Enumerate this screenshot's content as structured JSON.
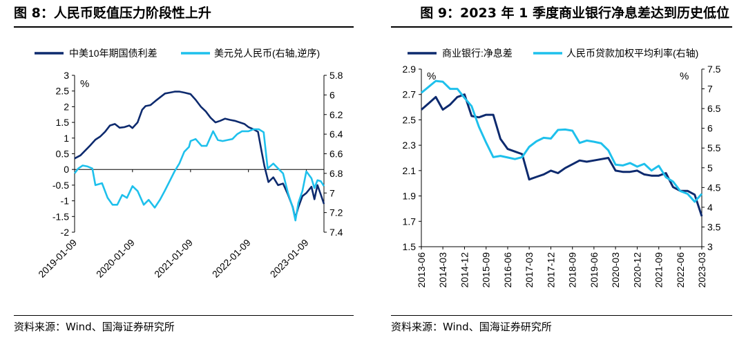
{
  "panels": [
    {
      "title": "图 8：人民币贬值压力阶段性上升",
      "source": "资料来源：Wind、国海证券研究所"
    },
    {
      "title": "图 9：2023 年 1 季度商业银行净息差达到历史低位",
      "source": "资料来源：Wind、国海证券研究所"
    }
  ],
  "chart_data": [
    {
      "type": "line",
      "title": "图 8：人民币贬值压力阶段性上升",
      "x_ticks": [
        "2019-01-09",
        "2020-01-09",
        "2021-01-09",
        "2022-01-09",
        "2023-01-09"
      ],
      "x_range": [
        "2019-01-09",
        "2023-04-30"
      ],
      "y_left": {
        "unit": "%",
        "ticks": [
          "3",
          "2.5",
          "2",
          "1.5",
          "1",
          "0.5",
          "0",
          "-0.5",
          "-1",
          "-1.5",
          "-2"
        ],
        "range": [
          -2,
          3
        ]
      },
      "y_right": {
        "ticks": [
          "5.8",
          "6",
          "6.2",
          "6.4",
          "6.6",
          "6.8",
          "7",
          "7.2",
          "7.4"
        ],
        "range": [
          5.8,
          7.4
        ],
        "reversed": true
      },
      "legend_position": "top",
      "grid": false,
      "series": [
        {
          "name": "中美10年期国债利差",
          "color": "#0d2a6e",
          "axis": "left",
          "points": [
            [
              "2019-01-09",
              0.35
            ],
            [
              "2019-02-15",
              0.45
            ],
            [
              "2019-03-20",
              0.62
            ],
            [
              "2019-04-20",
              0.78
            ],
            [
              "2019-05-20",
              0.95
            ],
            [
              "2019-06-20",
              1.05
            ],
            [
              "2019-07-20",
              1.2
            ],
            [
              "2019-08-20",
              1.4
            ],
            [
              "2019-09-20",
              1.45
            ],
            [
              "2019-10-20",
              1.33
            ],
            [
              "2019-11-20",
              1.35
            ],
            [
              "2019-12-20",
              1.4
            ],
            [
              "2020-01-09",
              1.32
            ],
            [
              "2020-02-10",
              1.5
            ],
            [
              "2020-03-10",
              1.9
            ],
            [
              "2020-03-31",
              2.02
            ],
            [
              "2020-05-01",
              2.05
            ],
            [
              "2020-06-01",
              2.18
            ],
            [
              "2020-07-01",
              2.3
            ],
            [
              "2020-08-01",
              2.42
            ],
            [
              "2020-09-01",
              2.45
            ],
            [
              "2020-10-01",
              2.48
            ],
            [
              "2020-11-01",
              2.48
            ],
            [
              "2020-12-01",
              2.45
            ],
            [
              "2021-01-09",
              2.4
            ],
            [
              "2021-02-10",
              2.22
            ],
            [
              "2021-03-15",
              2.0
            ],
            [
              "2021-04-15",
              1.85
            ],
            [
              "2021-05-15",
              1.65
            ],
            [
              "2021-06-15",
              1.5
            ],
            [
              "2021-07-15",
              1.55
            ],
            [
              "2021-08-15",
              1.62
            ],
            [
              "2021-09-15",
              1.58
            ],
            [
              "2021-10-15",
              1.55
            ],
            [
              "2021-11-15",
              1.5
            ],
            [
              "2021-12-15",
              1.45
            ],
            [
              "2022-01-09",
              1.35
            ],
            [
              "2022-02-10",
              1.28
            ],
            [
              "2022-03-10",
              1.2
            ],
            [
              "2022-04-01",
              0.6
            ],
            [
              "2022-04-20",
              0.1
            ],
            [
              "2022-05-15",
              -0.4
            ],
            [
              "2022-06-15",
              -0.25
            ],
            [
              "2022-07-15",
              -0.5
            ],
            [
              "2022-08-15",
              -0.45
            ],
            [
              "2022-09-15",
              -0.8
            ],
            [
              "2022-10-15",
              -1.2
            ],
            [
              "2022-10-31",
              -1.55
            ],
            [
              "2022-11-20",
              -1.2
            ],
            [
              "2022-12-15",
              -0.85
            ],
            [
              "2023-01-09",
              -0.75
            ],
            [
              "2023-02-10",
              -0.55
            ],
            [
              "2023-03-01",
              -0.95
            ],
            [
              "2023-03-20",
              -0.5
            ],
            [
              "2023-04-10",
              -0.8
            ],
            [
              "2023-04-30",
              -1.1
            ]
          ]
        },
        {
          "name": "美元兑人民币(右轴,逆序)",
          "color": "#1ec0ec",
          "axis": "right",
          "points": [
            [
              "2019-01-09",
              6.8
            ],
            [
              "2019-02-01",
              6.75
            ],
            [
              "2019-03-01",
              6.72
            ],
            [
              "2019-04-01",
              6.73
            ],
            [
              "2019-05-01",
              6.75
            ],
            [
              "2019-05-20",
              6.92
            ],
            [
              "2019-07-01",
              6.9
            ],
            [
              "2019-08-05",
              7.05
            ],
            [
              "2019-09-05",
              7.12
            ],
            [
              "2019-10-05",
              7.12
            ],
            [
              "2019-11-05",
              7.02
            ],
            [
              "2019-12-05",
              7.05
            ],
            [
              "2020-01-09",
              6.93
            ],
            [
              "2020-02-10",
              6.98
            ],
            [
              "2020-03-20",
              7.12
            ],
            [
              "2020-04-20",
              7.07
            ],
            [
              "2020-05-28",
              7.15
            ],
            [
              "2020-06-30",
              7.07
            ],
            [
              "2020-07-30",
              6.98
            ],
            [
              "2020-08-30",
              6.88
            ],
            [
              "2020-09-30",
              6.78
            ],
            [
              "2020-10-30",
              6.7
            ],
            [
              "2020-11-30",
              6.58
            ],
            [
              "2020-12-30",
              6.53
            ],
            [
              "2021-01-09",
              6.47
            ],
            [
              "2021-02-10",
              6.45
            ],
            [
              "2021-03-20",
              6.52
            ],
            [
              "2021-04-20",
              6.52
            ],
            [
              "2021-05-31",
              6.37
            ],
            [
              "2021-06-30",
              6.46
            ],
            [
              "2021-07-30",
              6.47
            ],
            [
              "2021-08-30",
              6.46
            ],
            [
              "2021-09-30",
              6.45
            ],
            [
              "2021-10-30",
              6.4
            ],
            [
              "2021-11-30",
              6.37
            ],
            [
              "2021-12-30",
              6.37
            ],
            [
              "2022-01-09",
              6.37
            ],
            [
              "2022-02-10",
              6.35
            ],
            [
              "2022-03-15",
              6.35
            ],
            [
              "2022-04-15",
              6.38
            ],
            [
              "2022-05-10",
              6.75
            ],
            [
              "2022-06-15",
              6.7
            ],
            [
              "2022-07-15",
              6.75
            ],
            [
              "2022-08-15",
              6.8
            ],
            [
              "2022-09-15",
              7.0
            ],
            [
              "2022-10-15",
              7.15
            ],
            [
              "2022-11-01",
              7.28
            ],
            [
              "2022-11-20",
              7.1
            ],
            [
              "2022-12-15",
              6.98
            ],
            [
              "2023-01-09",
              6.78
            ],
            [
              "2023-02-10",
              6.85
            ],
            [
              "2023-03-01",
              6.95
            ],
            [
              "2023-03-20",
              6.87
            ],
            [
              "2023-04-10",
              6.88
            ],
            [
              "2023-04-30",
              6.93
            ]
          ]
        }
      ]
    },
    {
      "type": "line",
      "title": "图 9：2023 年 1 季度商业银行净息差达到历史低位",
      "categories": [
        "2013-06",
        "2014-03",
        "2014-12",
        "2015-09",
        "2016-06",
        "2017-03",
        "2017-12",
        "2018-09",
        "2019-06",
        "2020-03",
        "2020-12",
        "2021-09",
        "2022-06",
        "2023-03"
      ],
      "x_range": [
        "2013-06",
        "2023-03"
      ],
      "y_left": {
        "unit": "%",
        "ticks": [
          "2.9",
          "2.7",
          "2.5",
          "2.3",
          "2.1",
          "1.9",
          "1.7",
          "1.5"
        ],
        "range": [
          1.5,
          2.9
        ]
      },
      "y_right": {
        "unit": "%",
        "ticks": [
          "7.5",
          "7",
          "6.5",
          "6",
          "5.5",
          "5",
          "4.5",
          "4",
          "3.5",
          "3"
        ],
        "range": [
          3,
          7.5
        ]
      },
      "legend_position": "top",
      "grid": false,
      "series": [
        {
          "name": "商业银行:净息差",
          "color": "#0d2a6e",
          "axis": "left",
          "points": [
            [
              "2013-06",
              2.58
            ],
            [
              "2013-09",
              2.63
            ],
            [
              "2013-12",
              2.68
            ],
            [
              "2014-03",
              2.58
            ],
            [
              "2014-06",
              2.62
            ],
            [
              "2014-09",
              2.68
            ],
            [
              "2014-12",
              2.7
            ],
            [
              "2015-03",
              2.53
            ],
            [
              "2015-06",
              2.52
            ],
            [
              "2015-09",
              2.54
            ],
            [
              "2015-12",
              2.54
            ],
            [
              "2016-03",
              2.35
            ],
            [
              "2016-06",
              2.27
            ],
            [
              "2016-09",
              2.25
            ],
            [
              "2016-12",
              2.23
            ],
            [
              "2017-03",
              2.03
            ],
            [
              "2017-06",
              2.05
            ],
            [
              "2017-09",
              2.07
            ],
            [
              "2017-12",
              2.1
            ],
            [
              "2018-03",
              2.08
            ],
            [
              "2018-06",
              2.12
            ],
            [
              "2018-09",
              2.15
            ],
            [
              "2018-12",
              2.18
            ],
            [
              "2019-03",
              2.17
            ],
            [
              "2019-06",
              2.18
            ],
            [
              "2019-09",
              2.19
            ],
            [
              "2019-12",
              2.2
            ],
            [
              "2020-03",
              2.1
            ],
            [
              "2020-06",
              2.09
            ],
            [
              "2020-09",
              2.09
            ],
            [
              "2020-12",
              2.1
            ],
            [
              "2021-03",
              2.07
            ],
            [
              "2021-06",
              2.06
            ],
            [
              "2021-09",
              2.06
            ],
            [
              "2021-12",
              2.08
            ],
            [
              "2022-03",
              1.97
            ],
            [
              "2022-06",
              1.94
            ],
            [
              "2022-09",
              1.94
            ],
            [
              "2022-12",
              1.91
            ],
            [
              "2023-03",
              1.74
            ]
          ]
        },
        {
          "name": "人民币贷款加权平均利率(右轴)",
          "color": "#1ec0ec",
          "axis": "right",
          "points": [
            [
              "2013-06",
              6.9
            ],
            [
              "2013-09",
              7.05
            ],
            [
              "2013-12",
              7.2
            ],
            [
              "2014-03",
              7.18
            ],
            [
              "2014-06",
              7.0
            ],
            [
              "2014-09",
              7.0
            ],
            [
              "2014-12",
              6.77
            ],
            [
              "2015-03",
              6.56
            ],
            [
              "2015-06",
              6.04
            ],
            [
              "2015-09",
              5.64
            ],
            [
              "2015-12",
              5.27
            ],
            [
              "2016-03",
              5.3
            ],
            [
              "2016-06",
              5.26
            ],
            [
              "2016-09",
              5.22
            ],
            [
              "2016-12",
              5.27
            ],
            [
              "2017-03",
              5.53
            ],
            [
              "2017-06",
              5.67
            ],
            [
              "2017-09",
              5.76
            ],
            [
              "2017-12",
              5.74
            ],
            [
              "2018-03",
              5.96
            ],
            [
              "2018-06",
              5.97
            ],
            [
              "2018-09",
              5.94
            ],
            [
              "2018-12",
              5.63
            ],
            [
              "2019-03",
              5.69
            ],
            [
              "2019-06",
              5.66
            ],
            [
              "2019-09",
              5.62
            ],
            [
              "2019-12",
              5.44
            ],
            [
              "2020-03",
              5.08
            ],
            [
              "2020-06",
              5.06
            ],
            [
              "2020-09",
              5.12
            ],
            [
              "2020-12",
              5.03
            ],
            [
              "2021-03",
              5.1
            ],
            [
              "2021-06",
              4.93
            ],
            [
              "2021-09",
              5.05
            ],
            [
              "2021-12",
              4.76
            ],
            [
              "2022-03",
              4.65
            ],
            [
              "2022-06",
              4.41
            ],
            [
              "2022-09",
              4.34
            ],
            [
              "2022-12",
              4.14
            ],
            [
              "2023-03",
              4.34
            ]
          ]
        }
      ]
    }
  ]
}
